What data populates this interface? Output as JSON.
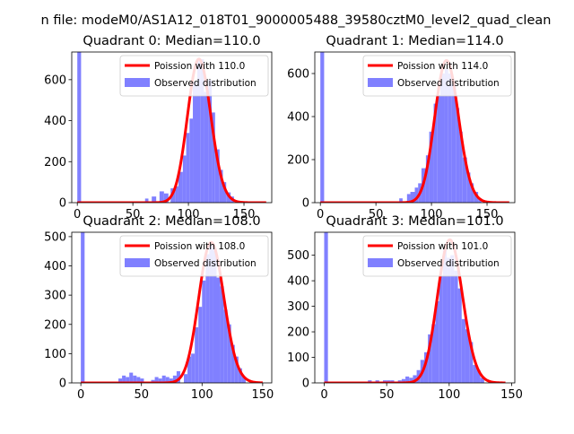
{
  "figure_title": "n file: modeM0/AS1A12_018T01_9000005488_39580cztM0_level2_quad_clean",
  "chart_data": [
    {
      "type": "bar",
      "title": "Quadrant 0: Median=110.0",
      "xlim": [
        -5,
        175
      ],
      "ylim": [
        0,
        735
      ],
      "xticks": [
        0,
        50,
        100,
        150
      ],
      "yticks": [
        0,
        200,
        400,
        600
      ],
      "legend": {
        "placement": "top-right",
        "entries": [
          "Poission with 110.0",
          "Observed distribution"
        ]
      },
      "series": [
        {
          "name": "Poission with 110.0",
          "kind": "line",
          "color": "#ff0000",
          "mean": 110.0,
          "peak": 700,
          "x_range": [
            0,
            170
          ]
        },
        {
          "name": "Observed distribution",
          "kind": "histogram",
          "color": "#8080ff",
          "bins": [
            [
              0,
              3.4,
              735
            ],
            [
              61,
              64,
              20
            ],
            [
              67,
              71,
              30
            ],
            [
              74,
              78,
              55
            ],
            [
              78,
              82,
              45
            ],
            [
              84,
              88,
              70
            ],
            [
              88,
              91,
              80
            ],
            [
              91,
              95,
              150
            ],
            [
              95,
              98,
              230
            ],
            [
              98,
              101,
              340
            ],
            [
              101,
              104,
              410
            ],
            [
              104,
              108,
              590
            ],
            [
              108,
              111,
              690
            ],
            [
              111,
              114,
              700
            ],
            [
              114,
              118,
              540
            ],
            [
              118,
              121,
              600
            ],
            [
              121,
              124,
              440
            ],
            [
              124,
              128,
              260
            ],
            [
              128,
              131,
              160
            ],
            [
              131,
              134,
              100
            ],
            [
              134,
              138,
              50
            ],
            [
              138,
              141,
              30
            ]
          ]
        }
      ]
    },
    {
      "type": "bar",
      "title": "Quadrant 1: Median=114.0",
      "xlim": [
        -5,
        175
      ],
      "ylim": [
        0,
        700
      ],
      "xticks": [
        0,
        50,
        100,
        150
      ],
      "yticks": [
        0,
        200,
        400,
        600
      ],
      "legend": {
        "placement": "top-right",
        "entries": [
          "Poission with 114.0",
          "Observed distribution"
        ]
      },
      "series": [
        {
          "name": "Poission with 114.0",
          "kind": "line",
          "color": "#ff0000",
          "mean": 114.0,
          "peak": 660,
          "x_range": [
            0,
            170
          ]
        },
        {
          "name": "Observed distribution",
          "kind": "histogram",
          "color": "#8080ff",
          "bins": [
            [
              0,
              3.4,
              700
            ],
            [
              71,
              74,
              20
            ],
            [
              78,
              81,
              40
            ],
            [
              81,
              85,
              50
            ],
            [
              85,
              88,
              70
            ],
            [
              88,
              91,
              90
            ],
            [
              91,
              95,
              160
            ],
            [
              95,
              98,
              220
            ],
            [
              98,
              102,
              330
            ],
            [
              102,
              105,
              460
            ],
            [
              105,
              108,
              500
            ],
            [
              108,
              112,
              600
            ],
            [
              112,
              115,
              620
            ],
            [
              115,
              118,
              600
            ],
            [
              118,
              122,
              550
            ],
            [
              122,
              125,
              440
            ],
            [
              125,
              128,
              330
            ],
            [
              128,
              132,
              210
            ],
            [
              132,
              135,
              140
            ],
            [
              135,
              138,
              90
            ],
            [
              138,
              142,
              50
            ],
            [
              142,
              145,
              20
            ]
          ]
        }
      ]
    },
    {
      "type": "bar",
      "title": "Quadrant 2: Median=108.0",
      "xlim": [
        -7.5,
        157.5
      ],
      "ylim": [
        0,
        515
      ],
      "xticks": [
        0,
        50,
        100,
        150
      ],
      "yticks": [
        0,
        100,
        200,
        300,
        400,
        500
      ],
      "legend": {
        "placement": "top-right",
        "entries": [
          "Poission with 108.0",
          "Observed distribution"
        ]
      },
      "series": [
        {
          "name": "Poission with 108.0",
          "kind": "line",
          "color": "#ff0000",
          "mean": 108.0,
          "peak": 480,
          "x_range": [
            0,
            150
          ]
        },
        {
          "name": "Observed distribution",
          "kind": "histogram",
          "color": "#8080ff",
          "bins": [
            [
              0,
              3.1,
              515
            ],
            [
              31,
              34,
              15
            ],
            [
              34,
              37,
              25
            ],
            [
              37,
              40,
              20
            ],
            [
              40,
              43,
              35
            ],
            [
              43,
              46,
              25
            ],
            [
              46,
              49,
              20
            ],
            [
              49,
              52,
              15
            ],
            [
              58,
              61,
              10
            ],
            [
              61,
              64,
              20
            ],
            [
              64,
              67,
              15
            ],
            [
              67,
              70,
              25
            ],
            [
              70,
              73,
              20
            ],
            [
              73,
              76,
              15
            ],
            [
              76,
              79,
              25
            ],
            [
              79,
              82,
              40
            ],
            [
              85,
              88,
              30
            ],
            [
              88,
              91,
              90
            ],
            [
              91,
              94,
              100
            ],
            [
              94,
              97,
              190
            ],
            [
              97,
              100,
              260
            ],
            [
              100,
              103,
              350
            ],
            [
              103,
              106,
              440
            ],
            [
              106,
              109,
              470
            ],
            [
              109,
              112,
              460
            ],
            [
              112,
              115,
              360
            ],
            [
              115,
              118,
              330
            ],
            [
              118,
              121,
              250
            ],
            [
              121,
              124,
              200
            ],
            [
              124,
              127,
              130
            ],
            [
              127,
              130,
              90
            ],
            [
              130,
              133,
              50
            ],
            [
              133,
              136,
              20
            ]
          ]
        }
      ]
    },
    {
      "type": "bar",
      "title": "Quadrant 3: Median=101.0",
      "xlim": [
        -7.5,
        152.5
      ],
      "ylim": [
        0,
        590
      ],
      "xticks": [
        0,
        50,
        100,
        150
      ],
      "yticks": [
        0,
        100,
        200,
        300,
        400,
        500
      ],
      "legend": {
        "placement": "top-right",
        "entries": [
          "Poission with 101.0",
          "Observed distribution"
        ]
      },
      "series": [
        {
          "name": "Poission with 101.0",
          "kind": "line",
          "color": "#ff0000",
          "mean": 101.0,
          "peak": 560,
          "x_range": [
            0,
            145
          ]
        },
        {
          "name": "Observed distribution",
          "kind": "histogram",
          "color": "#8080ff",
          "bins": [
            [
              0,
              3.0,
              590
            ],
            [
              35,
              38,
              10
            ],
            [
              41,
              44,
              10
            ],
            [
              47,
              50,
              10
            ],
            [
              50,
              53,
              10
            ],
            [
              53,
              56,
              10
            ],
            [
              59,
              62,
              10
            ],
            [
              62,
              65,
              15
            ],
            [
              65,
              68,
              25
            ],
            [
              68,
              71,
              20
            ],
            [
              71,
              74,
              30
            ],
            [
              74,
              77,
              50
            ],
            [
              77,
              80,
              90
            ],
            [
              80,
              83,
              120
            ],
            [
              83,
              86,
              190
            ],
            [
              86,
              89,
              230
            ],
            [
              89,
              92,
              320
            ],
            [
              92,
              95,
              420
            ],
            [
              95,
              98,
              530
            ],
            [
              98,
              101,
              490
            ],
            [
              101,
              104,
              500
            ],
            [
              104,
              107,
              440
            ],
            [
              107,
              110,
              370
            ],
            [
              110,
              113,
              250
            ],
            [
              113,
              116,
              210
            ],
            [
              116,
              119,
              160
            ],
            [
              119,
              122,
              70
            ],
            [
              122,
              125,
              50
            ],
            [
              125,
              128,
              20
            ]
          ]
        }
      ]
    }
  ]
}
